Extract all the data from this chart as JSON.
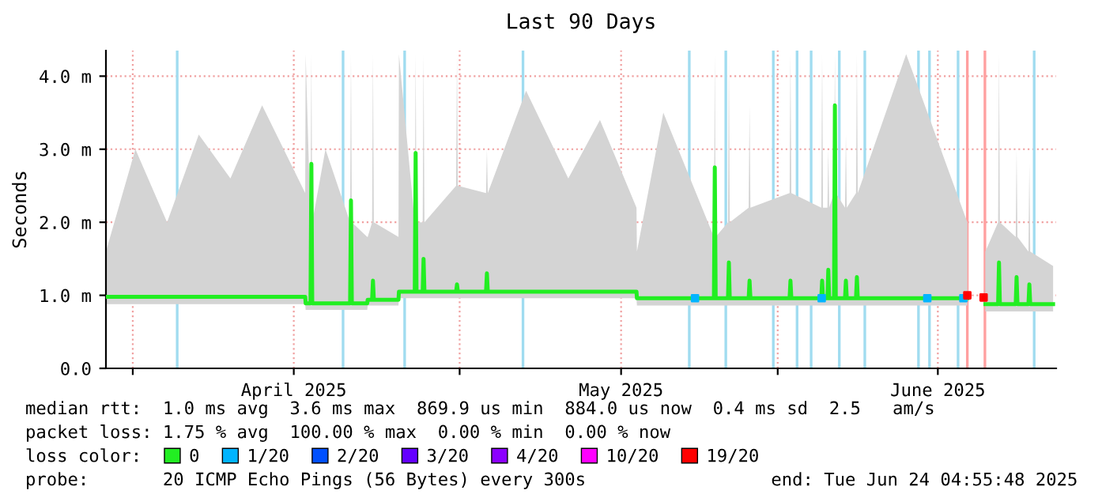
{
  "chart_data": {
    "type": "line",
    "title": "Last 90 Days",
    "ylabel": "Seconds",
    "xlim": [
      "2025-03-26T05:00",
      "2025-06-24T04:55"
    ],
    "xticks": [
      {
        "value": "2025-03-28T18:00",
        "label": null
      },
      {
        "value": "2025-04-13",
        "label": "April 2025"
      },
      {
        "value": "2025-04-28T17:00",
        "label": null
      },
      {
        "value": "2025-05-14",
        "label": "May 2025"
      },
      {
        "value": "2025-05-28T20:00",
        "label": null
      },
      {
        "value": "2025-06-13",
        "label": "June 2025"
      }
    ],
    "ylim": [
      0,
      4.35
    ],
    "yticks": [
      {
        "value": 0,
        "label": "0.0"
      },
      {
        "value": 1,
        "label": "1.0 m"
      },
      {
        "value": 2,
        "label": "2.0 m"
      },
      {
        "value": 3,
        "label": "3.0 m"
      },
      {
        "value": 4,
        "label": "4.0 m"
      }
    ],
    "grid": true,
    "legend": "bottom",
    "legend_title": "loss color:",
    "marker": "none",
    "line_style": "solid",
    "series": [
      {
        "name": "0",
        "color": "#22ee22",
        "x": [
          "2025-03-26T05:00",
          "2025-03-29",
          "2025-04-01",
          "2025-04-04",
          "2025-04-07",
          "2025-04-10",
          "2025-04-14T02:00",
          "2025-04-14T03:00",
          "2025-04-14T14:00",
          "2025-04-14T16:00",
          "2025-04-14T18:00",
          "2025-04-16",
          "2025-04-18T08:00",
          "2025-04-18T10:00",
          "2025-04-18T12:00",
          "2025-04-19T23:00",
          "2025-04-20T00:00",
          "2025-04-20T10:00",
          "2025-04-20T12:00",
          "2025-04-20T14:00",
          "2025-04-22T22:00",
          "2025-04-22T23:00",
          "2025-04-24T11:00",
          "2025-04-24T13:00",
          "2025-04-24T15:00",
          "2025-04-25T05:00",
          "2025-04-25T07:00",
          "2025-04-25T09:00",
          "2025-04-28T09:00",
          "2025-04-28T11:00",
          "2025-04-28T13:00",
          "2025-05-01T05:00",
          "2025-05-01T07:00",
          "2025-05-01T09:00",
          "2025-05-05",
          "2025-05-09",
          "2025-05-12",
          "2025-05-15T11:00",
          "2025-05-15T12:00",
          "2025-05-18",
          "2025-05-22T19:00",
          "2025-05-22T21:00",
          "2025-05-22T23:00",
          "2025-05-24T03:00",
          "2025-05-24T05:00",
          "2025-05-24T07:00",
          "2025-05-26T02:00",
          "2025-05-26T04:00",
          "2025-05-26T06:00",
          "2025-05-29T23:00",
          "2025-05-30T01:00",
          "2025-05-30T03:00",
          "2025-06-01T23:00",
          "2025-06-02T01:00",
          "2025-06-02T03:00",
          "2025-06-02T13:00",
          "2025-06-02T15:00",
          "2025-06-02T17:00",
          "2025-06-03T04:00",
          "2025-06-03T06:00",
          "2025-06-03T08:00",
          "2025-06-04T05:00",
          "2025-06-04T07:00",
          "2025-06-04T09:00",
          "2025-06-05T06:00",
          "2025-06-05T08:00",
          "2025-06-05T10:00",
          "2025-06-10",
          "2025-06-15T19:00",
          "2025-06-16T12:00",
          "2025-06-17T12:00",
          "2025-06-18T17:00",
          "2025-06-18T19:00",
          "2025-06-18T21:00",
          "2025-06-20T09:00",
          "2025-06-20T11:00",
          "2025-06-20T13:00",
          "2025-06-21T14:00",
          "2025-06-21T16:00",
          "2025-06-21T18:00",
          "2025-06-23T22:00"
        ],
        "values": [
          0.98,
          0.98,
          0.98,
          0.98,
          0.98,
          0.98,
          0.98,
          0.89,
          0.89,
          2.8,
          0.89,
          0.89,
          0.89,
          2.3,
          0.89,
          0.89,
          0.94,
          0.94,
          1.2,
          0.94,
          0.94,
          1.05,
          1.05,
          2.95,
          1.05,
          1.05,
          1.5,
          1.05,
          1.05,
          1.15,
          1.05,
          1.05,
          1.3,
          1.05,
          1.05,
          1.05,
          1.05,
          1.05,
          0.96,
          0.96,
          0.96,
          2.75,
          0.96,
          0.96,
          1.45,
          0.96,
          0.96,
          1.2,
          0.96,
          0.96,
          1.2,
          0.96,
          0.96,
          1.2,
          0.96,
          0.96,
          1.35,
          0.96,
          0.96,
          3.6,
          0.96,
          0.96,
          1.2,
          0.96,
          0.96,
          1.25,
          0.96,
          0.96,
          0.96,
          null,
          0.88,
          0.88,
          1.45,
          0.88,
          0.88,
          1.25,
          0.88,
          0.88,
          1.15,
          0.88,
          0.88
        ],
        "lower": [
          0.88,
          0.88,
          0.88,
          0.88,
          0.88,
          0.88,
          0.88,
          0.8,
          0.8,
          0.8,
          0.8,
          0.8,
          0.8,
          0.8,
          0.8,
          0.8,
          0.86,
          0.86,
          0.86,
          0.86,
          0.86,
          0.96,
          0.96,
          0.96,
          0.96,
          0.96,
          0.96,
          0.96,
          0.96,
          0.96,
          0.96,
          0.96,
          0.96,
          0.96,
          0.96,
          0.96,
          0.96,
          0.96,
          0.86,
          0.86,
          0.86,
          0.86,
          0.86,
          0.86,
          0.86,
          0.86,
          0.86,
          0.86,
          0.86,
          0.86,
          0.86,
          0.86,
          0.86,
          0.86,
          0.86,
          0.86,
          0.86,
          0.86,
          0.86,
          0.86,
          0.86,
          0.86,
          0.86,
          0.86,
          0.86,
          0.86,
          0.86,
          0.86,
          0.86,
          null,
          0.78,
          0.78,
          0.78,
          0.78,
          0.78,
          0.78,
          0.78,
          0.78,
          0.78,
          0.78,
          0.78
        ],
        "upper": [
          1.6,
          3.0,
          2.0,
          3.2,
          2.6,
          3.6,
          2.4,
          4.3,
          2.0,
          4.3,
          2.0,
          3.0,
          2.0,
          4.3,
          2.0,
          1.8,
          1.8,
          2.0,
          4.3,
          2.0,
          1.8,
          4.3,
          2.0,
          4.3,
          2.0,
          2.0,
          4.3,
          2.0,
          2.5,
          4.3,
          2.5,
          2.4,
          3.0,
          2.4,
          3.8,
          2.6,
          3.4,
          2.2,
          1.6,
          3.5,
          1.8,
          4.3,
          1.8,
          2.0,
          4.3,
          2.0,
          2.2,
          3.6,
          2.2,
          2.4,
          4.3,
          2.4,
          2.2,
          4.3,
          2.2,
          2.2,
          3.0,
          2.2,
          2.4,
          4.3,
          2.4,
          2.2,
          3.2,
          2.2,
          2.4,
          4.3,
          2.4,
          4.3,
          2.0,
          null,
          1.6,
          2.0,
          4.3,
          2.0,
          1.8,
          3.0,
          1.8,
          1.6,
          2.8,
          1.6,
          1.4
        ]
      },
      {
        "name": "1/20",
        "type": "scatter",
        "marker": "square",
        "color": "#00b4ff",
        "x": [
          "2025-05-21",
          "2025-06-02",
          "2025-06-12",
          "2025-06-15T10:00"
        ],
        "values": [
          0.96,
          0.96,
          0.96,
          0.96
        ]
      },
      {
        "name": "2/20",
        "type": "scatter",
        "color": "#0050ff"
      },
      {
        "name": "3/20",
        "type": "scatter",
        "color": "#6400ff"
      },
      {
        "name": "4/20",
        "type": "scatter",
        "color": "#8c00ff"
      },
      {
        "name": "10/20",
        "type": "scatter",
        "color": "#ff00ff"
      },
      {
        "name": "19/20",
        "type": "scatter",
        "marker": "square",
        "color": "#ff0000",
        "x": [
          "2025-06-15T19:00",
          "2025-06-17T08:00"
        ],
        "values": [
          1.0,
          0.97
        ]
      }
    ],
    "ref_lines": [
      {
        "axis": "x",
        "value": "2025-04-01T23:00",
        "color": "#a0dcf0"
      },
      {
        "axis": "x",
        "value": "2025-04-17T16:00",
        "color": "#a0dcf0"
      },
      {
        "axis": "x",
        "value": "2025-04-23T12:00",
        "color": "#a0dcf0"
      },
      {
        "axis": "x",
        "value": "2025-05-04T17:00",
        "color": "#a0dcf0"
      },
      {
        "axis": "x",
        "value": "2025-05-20T11:00",
        "color": "#a0dcf0"
      },
      {
        "axis": "x",
        "value": "2025-05-23T22:00",
        "color": "#a0dcf0"
      },
      {
        "axis": "x",
        "value": "2025-05-28T10:00",
        "color": "#a0dcf0"
      },
      {
        "axis": "x",
        "value": "2025-05-30T16:00",
        "color": "#a0dcf0"
      },
      {
        "axis": "x",
        "value": "2025-06-01T00:00",
        "color": "#a0dcf0"
      },
      {
        "axis": "x",
        "value": "2025-06-03T16:00",
        "color": "#a0dcf0"
      },
      {
        "axis": "x",
        "value": "2025-06-06T02:00",
        "color": "#a0dcf0"
      },
      {
        "axis": "x",
        "value": "2025-06-11T04:00",
        "color": "#a0dcf0"
      },
      {
        "axis": "x",
        "value": "2025-06-12T05:00",
        "color": "#a0dcf0"
      },
      {
        "axis": "x",
        "value": "2025-06-14T22:00",
        "color": "#a0dcf0"
      },
      {
        "axis": "x",
        "value": "2025-06-22T03:00",
        "color": "#a0dcf0"
      },
      {
        "axis": "x",
        "value": "2025-06-15T19:00",
        "color": "#ffa0a0"
      },
      {
        "axis": "x",
        "value": "2025-06-17T11:00",
        "color": "#ffa0a0"
      }
    ],
    "annotations": [
      "median rtt:  1.0 ms avg  3.6 ms max  869.9 us min  884.0 us now  0.4 ms sd  2.5   am/s",
      "packet loss: 1.75 % avg  100.00 % max  0.00 % min  0.00 % now",
      "probe:       20 ICMP Echo Pings (56 Bytes) every 300s",
      "end: Tue Jun 24 04:55:48 2025"
    ]
  }
}
